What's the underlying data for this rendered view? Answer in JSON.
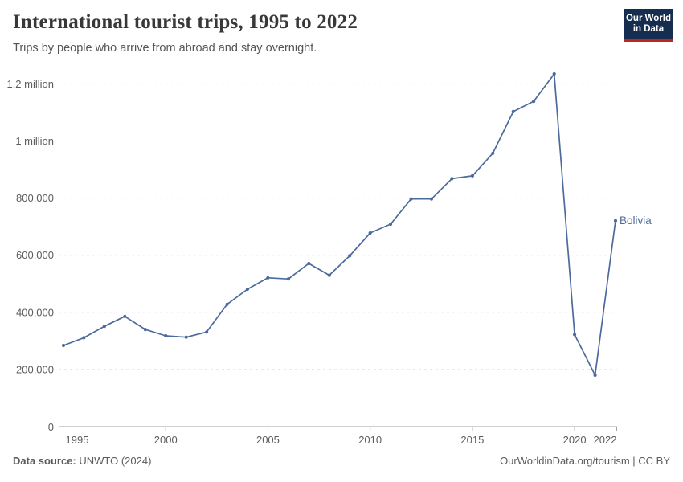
{
  "header": {
    "title": "International tourist trips, 1995 to 2022",
    "subtitle": "Trips by people who arrive from abroad and stay overnight.",
    "logo": {
      "line1": "Our World",
      "line2": "in Data"
    }
  },
  "footer": {
    "source_label": "Data source:",
    "source_value": "UNWTO (2024)",
    "right_text": "OurWorldinData.org/tourism | CC BY"
  },
  "chart_data": {
    "type": "line",
    "title": "International tourist trips, 1995 to 2022",
    "subtitle": "Trips by people who arrive from abroad and stay overnight.",
    "xlabel": "",
    "ylabel": "",
    "x": [
      1995,
      1996,
      1997,
      1998,
      1999,
      2000,
      2001,
      2002,
      2003,
      2004,
      2005,
      2006,
      2007,
      2008,
      2009,
      2010,
      2011,
      2012,
      2013,
      2014,
      2015,
      2016,
      2017,
      2018,
      2019,
      2020,
      2021,
      2022
    ],
    "series": [
      {
        "name": "Bolivia",
        "color": "#4C6A9C",
        "values": [
          284000,
          311000,
          351000,
          386000,
          340000,
          318000,
          313000,
          331000,
          428000,
          481000,
          521000,
          517000,
          571000,
          530000,
          598000,
          678000,
          709000,
          797000,
          797000,
          868000,
          878000,
          957000,
          1103000,
          1139000,
          1235000,
          322000,
          180000,
          721000
        ]
      }
    ],
    "x_ticks": [
      {
        "value": 1995,
        "label": "1995"
      },
      {
        "value": 2000,
        "label": "2000"
      },
      {
        "value": 2005,
        "label": "2005"
      },
      {
        "value": 2010,
        "label": "2010"
      },
      {
        "value": 2015,
        "label": "2015"
      },
      {
        "value": 2020,
        "label": "2020"
      },
      {
        "value": 2022,
        "label": "2022"
      }
    ],
    "y_ticks": [
      {
        "value": 0,
        "label": "0"
      },
      {
        "value": 200000,
        "label": "200,000"
      },
      {
        "value": 400000,
        "label": "400,000"
      },
      {
        "value": 600000,
        "label": "600,000"
      },
      {
        "value": 800000,
        "label": "800,000"
      },
      {
        "value": 1000000,
        "label": "1 million"
      },
      {
        "value": 1200000,
        "label": "1.2 million"
      }
    ],
    "xlim": [
      1995,
      2022
    ],
    "ylim": [
      0,
      1260000
    ],
    "grid": "horizontal-dashed",
    "legend_position": "end-of-line-label",
    "end_label": "Bolivia"
  },
  "colors": {
    "line": "#4C6A9C",
    "grid": "#DCDCDC",
    "axis": "#A3A3A3",
    "tick_label": "#5D5D5D",
    "entity_label": "#4C6A9C"
  }
}
